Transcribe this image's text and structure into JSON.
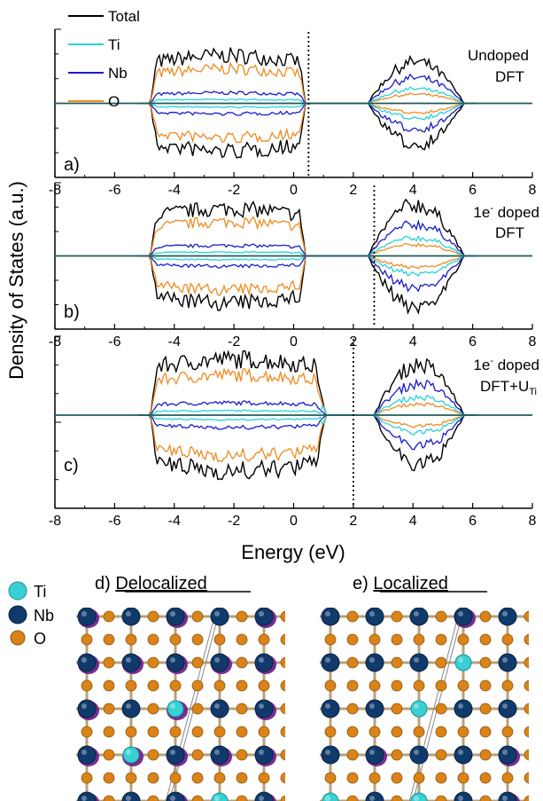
{
  "colors": {
    "total": "#000000",
    "ti": "#27d3d6",
    "nb": "#1a1acc",
    "o": "#f08a22",
    "ti_atom": "#38d0d4",
    "nb_atom": "#103a6b",
    "o_atom": "#d98319",
    "polaron": "#6a1d87",
    "bond": "#b9a27a"
  },
  "chart_data": {
    "type": "area",
    "xlabel": "Energy (eV)",
    "ylabel": "Density of States (a.u.)",
    "xlim": [
      -8,
      8
    ],
    "x_ticks": [
      "-8",
      "-6",
      "-4",
      "-2",
      "0",
      "2",
      "4",
      "6",
      "8"
    ],
    "legend": {
      "placement": "top-left",
      "entries": [
        "Total",
        "Ti",
        "Nb",
        "O"
      ]
    },
    "panels": [
      {
        "tag": "a)",
        "label_line1": "Undoped",
        "label_line2": "DFT",
        "label_sub": "",
        "fermi": 0.5,
        "valence_band": [
          -4.8,
          0.4
        ],
        "conduction_band": [
          2.5,
          5.7
        ],
        "valence_peak_total": 0.72,
        "conduction_peak_total": 0.62
      },
      {
        "tag": "b)",
        "label_line1": "1e",
        "label_sup": "-",
        "label_line1b": " doped",
        "label_line2": "DFT",
        "label_sub": "",
        "fermi": 2.7,
        "valence_band": [
          -4.8,
          0.4
        ],
        "conduction_band": [
          2.5,
          5.7
        ],
        "valence_peak_total": 0.72,
        "conduction_peak_total": 0.78
      },
      {
        "tag": "c)",
        "label_line1": "1e",
        "label_sup": "-",
        "label_line1b": " doped",
        "label_line2": "DFT+U",
        "label_sub": "Ti",
        "fermi": 2.0,
        "valence_band": [
          -4.8,
          1.0
        ],
        "conduction_band": [
          2.7,
          5.7
        ],
        "valence_peak_total": 0.72,
        "conduction_peak_total": 0.65
      }
    ]
  },
  "structures": {
    "legend": [
      "Ti",
      "Nb",
      "O"
    ],
    "titles": [
      {
        "prefix": "d) ",
        "title": "Delocalized"
      },
      {
        "prefix": "e) ",
        "title": "Localized"
      }
    ]
  }
}
